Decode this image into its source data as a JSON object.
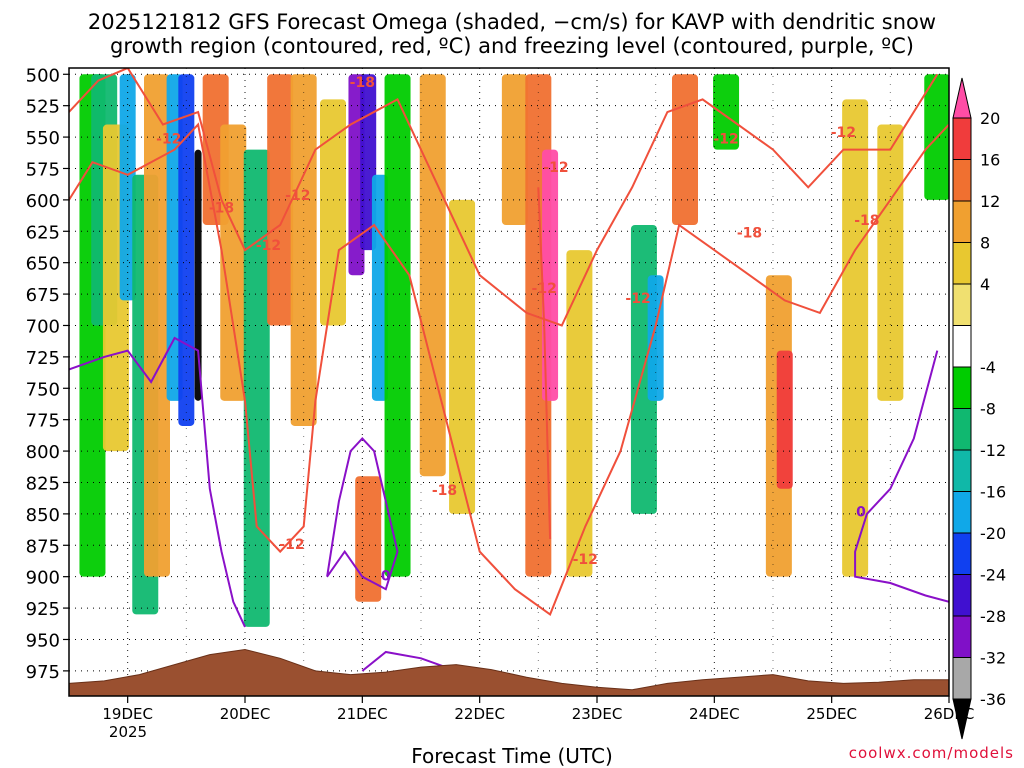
{
  "header": {
    "title_line1": "2025121812 GFS Forecast Omega (shaded, −cm/s) for KAVP with dendritic snow",
    "title_line2": "growth region (contoured, red, ºC) and freezing level (contoured, purple, ºC)"
  },
  "footer": {
    "credit": "coolwx.com/models"
  },
  "chart_data": {
    "type": "heatmap",
    "title": "2025121812 GFS Forecast Omega (shaded, −cm/s) for KAVP with dendritic snow growth region (contoured, red, ºC) and freezing level (contoured, purple, ºC)",
    "xlabel": "Forecast Time (UTC)",
    "ylabel": "Pressure (hPa)",
    "x_ticks": [
      "19DEC",
      "20DEC",
      "21DEC",
      "22DEC",
      "23DEC",
      "24DEC",
      "25DEC",
      "26DEC"
    ],
    "x_year_label": "2025",
    "xlim_days": [
      18.5,
      26.0
    ],
    "y_ticks": [
      500,
      525,
      550,
      575,
      600,
      625,
      650,
      675,
      700,
      725,
      750,
      775,
      800,
      825,
      850,
      875,
      900,
      925,
      950,
      975
    ],
    "ylim": [
      495,
      995
    ],
    "grid": true,
    "colorbar": {
      "labels": [
        20,
        16,
        12,
        8,
        4,
        -4,
        -8,
        -12,
        -16,
        -20,
        -24,
        -28,
        -32,
        -36
      ],
      "colors": [
        "#ff4da6",
        "#f03c3c",
        "#f07030",
        "#f0a030",
        "#e8c830",
        "#f0e070",
        "#ffffff",
        "#00cc00",
        "#10b870",
        "#10b8a8",
        "#10a8e8",
        "#1040f0",
        "#4010d0",
        "#8010c8",
        "#a8a8a8",
        "#000000"
      ]
    },
    "contour_labels": {
      "dendritic_growth_red": [
        "-12",
        "-18",
        "-12",
        "-18",
        "-12",
        "-18",
        "-12",
        "-12",
        "-12",
        "-12",
        "-18",
        "-12",
        "-18",
        "-12",
        "-12"
      ],
      "freezing_level_purple": [
        "0",
        "0"
      ]
    },
    "terrain_surface_hpa": [
      985,
      983,
      978,
      970,
      962,
      958,
      965,
      975,
      978,
      976,
      972,
      970,
      974,
      980,
      985,
      988,
      990,
      985,
      982,
      980,
      978,
      983,
      985,
      984,
      982,
      982
    ],
    "omega_cells": [
      {
        "day": 18.7,
        "p_top": 500,
        "p_bot": 900,
        "v": -8
      },
      {
        "day": 18.8,
        "p_top": 500,
        "p_bot": 700,
        "v": -12
      },
      {
        "day": 18.9,
        "p_top": 540,
        "p_bot": 800,
        "v": 4
      },
      {
        "day": 19.0,
        "p_top": 500,
        "p_bot": 680,
        "v": -16
      },
      {
        "day": 19.15,
        "p_top": 580,
        "p_bot": 930,
        "v": -12
      },
      {
        "day": 19.25,
        "p_top": 500,
        "p_bot": 900,
        "v": 8
      },
      {
        "day": 19.4,
        "p_top": 500,
        "p_bot": 760,
        "v": -16
      },
      {
        "day": 19.5,
        "p_top": 500,
        "p_bot": 780,
        "v": -20
      },
      {
        "day": 19.6,
        "p_top": 560,
        "p_bot": 760,
        "v": -36
      },
      {
        "day": 19.75,
        "p_top": 500,
        "p_bot": 620,
        "v": 12
      },
      {
        "day": 19.9,
        "p_top": 540,
        "p_bot": 760,
        "v": 8
      },
      {
        "day": 20.1,
        "p_top": 560,
        "p_bot": 940,
        "v": -12
      },
      {
        "day": 20.3,
        "p_top": 500,
        "p_bot": 700,
        "v": 12
      },
      {
        "day": 20.5,
        "p_top": 500,
        "p_bot": 780,
        "v": 8
      },
      {
        "day": 20.75,
        "p_top": 520,
        "p_bot": 700,
        "v": 4
      },
      {
        "day": 20.95,
        "p_top": 500,
        "p_bot": 660,
        "v": -28
      },
      {
        "day": 21.05,
        "p_top": 500,
        "p_bot": 640,
        "v": -24
      },
      {
        "day": 21.15,
        "p_top": 580,
        "p_bot": 760,
        "v": -16
      },
      {
        "day": 21.3,
        "p_top": 500,
        "p_bot": 900,
        "v": -8
      },
      {
        "day": 21.05,
        "p_top": 820,
        "p_bot": 920,
        "v": 12
      },
      {
        "day": 21.6,
        "p_top": 500,
        "p_bot": 820,
        "v": 8
      },
      {
        "day": 21.85,
        "p_top": 600,
        "p_bot": 850,
        "v": 4
      },
      {
        "day": 22.3,
        "p_top": 500,
        "p_bot": 620,
        "v": 8
      },
      {
        "day": 22.5,
        "p_top": 500,
        "p_bot": 900,
        "v": 12
      },
      {
        "day": 22.6,
        "p_top": 560,
        "p_bot": 760,
        "v": 20
      },
      {
        "day": 22.85,
        "p_top": 640,
        "p_bot": 900,
        "v": 4
      },
      {
        "day": 23.4,
        "p_top": 620,
        "p_bot": 850,
        "v": -12
      },
      {
        "day": 23.5,
        "p_top": 660,
        "p_bot": 760,
        "v": -16
      },
      {
        "day": 23.75,
        "p_top": 500,
        "p_bot": 620,
        "v": 12
      },
      {
        "day": 24.1,
        "p_top": 500,
        "p_bot": 560,
        "v": -8
      },
      {
        "day": 24.55,
        "p_top": 660,
        "p_bot": 900,
        "v": 8
      },
      {
        "day": 24.6,
        "p_top": 720,
        "p_bot": 830,
        "v": 16
      },
      {
        "day": 25.2,
        "p_top": 520,
        "p_bot": 900,
        "v": 4
      },
      {
        "day": 25.5,
        "p_top": 540,
        "p_bot": 760,
        "v": 4
      },
      {
        "day": 25.9,
        "p_top": 500,
        "p_bot": 600,
        "v": -8
      }
    ]
  }
}
